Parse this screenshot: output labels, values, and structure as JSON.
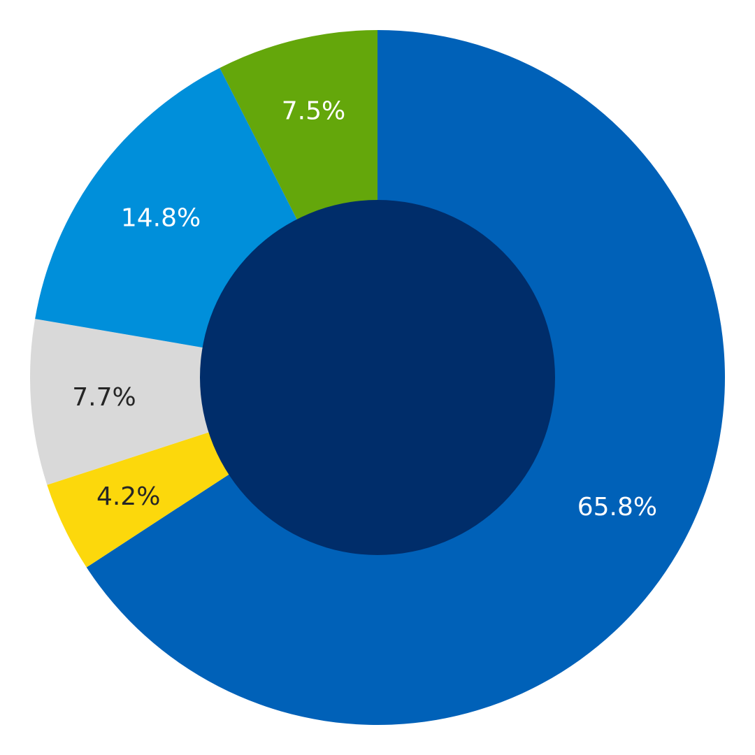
{
  "chart_data": {
    "type": "pie",
    "variant": "donut",
    "start": "12 o'clock",
    "direction": "clockwise",
    "legend": "none",
    "slices": [
      {
        "value": 65.8,
        "label": "65.8%",
        "color": "#0061B8",
        "label_color": "#FFFFFF"
      },
      {
        "value": 4.2,
        "label": "4.2%",
        "color": "#FCD80C",
        "label_color": "#262626"
      },
      {
        "value": 7.7,
        "label": "7.7%",
        "color": "#D9D9D9",
        "label_color": "#262626"
      },
      {
        "value": 14.8,
        "label": "14.8%",
        "color": "#008FDA",
        "label_color": "#FFFFFF"
      },
      {
        "value": 7.5,
        "label": "7.5%",
        "color": "#64A70B",
        "label_color": "#FFFFFF"
      }
    ],
    "center_color": "#002D6A"
  }
}
